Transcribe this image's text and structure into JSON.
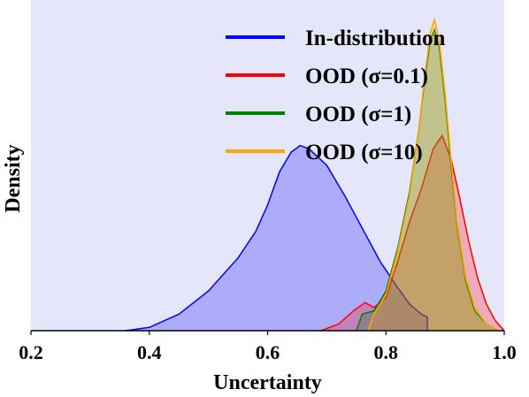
{
  "chart_data": {
    "type": "area",
    "xlabel": "Uncertainty",
    "ylabel": "Density",
    "xlim": [
      0.2,
      1.0
    ],
    "ylim": [
      0,
      1.0
    ],
    "x_ticks": [
      "0.2",
      "0.4",
      "0.6",
      "0.8",
      "1.0"
    ],
    "x_tick_values": [
      0.2,
      0.4,
      0.6,
      0.8,
      1.0
    ],
    "grid": false,
    "legend_position": "top-right",
    "background_color": "#e6e6fa",
    "series": [
      {
        "name": "In-distribution",
        "color": "#0000ff",
        "points": [
          [
            0.36,
            0.0
          ],
          [
            0.4,
            0.01
          ],
          [
            0.45,
            0.05
          ],
          [
            0.5,
            0.12
          ],
          [
            0.55,
            0.22
          ],
          [
            0.58,
            0.3
          ],
          [
            0.6,
            0.38
          ],
          [
            0.62,
            0.48
          ],
          [
            0.64,
            0.54
          ],
          [
            0.655,
            0.56
          ],
          [
            0.67,
            0.55
          ],
          [
            0.7,
            0.5
          ],
          [
            0.73,
            0.41
          ],
          [
            0.76,
            0.31
          ],
          [
            0.79,
            0.21
          ],
          [
            0.82,
            0.13
          ],
          [
            0.84,
            0.08
          ],
          [
            0.86,
            0.05
          ],
          [
            0.87,
            0.04
          ],
          [
            0.87,
            0.0
          ]
        ]
      },
      {
        "name": "OOD (σ=0.1)",
        "color": "#ff0000",
        "points": [
          [
            0.69,
            0.0
          ],
          [
            0.72,
            0.02
          ],
          [
            0.745,
            0.06
          ],
          [
            0.765,
            0.085
          ],
          [
            0.78,
            0.07
          ],
          [
            0.8,
            0.1
          ],
          [
            0.82,
            0.21
          ],
          [
            0.84,
            0.33
          ],
          [
            0.86,
            0.43
          ],
          [
            0.88,
            0.55
          ],
          [
            0.895,
            0.59
          ],
          [
            0.91,
            0.52
          ],
          [
            0.925,
            0.4
          ],
          [
            0.94,
            0.27
          ],
          [
            0.955,
            0.16
          ],
          [
            0.97,
            0.08
          ],
          [
            0.985,
            0.03
          ],
          [
            1.0,
            0.0
          ]
        ]
      },
      {
        "name": "OOD (σ=1)",
        "color": "#008000",
        "points": [
          [
            0.75,
            0.0
          ],
          [
            0.76,
            0.05
          ],
          [
            0.78,
            0.06
          ],
          [
            0.8,
            0.12
          ],
          [
            0.82,
            0.25
          ],
          [
            0.84,
            0.42
          ],
          [
            0.855,
            0.6
          ],
          [
            0.865,
            0.75
          ],
          [
            0.875,
            0.88
          ],
          [
            0.882,
            0.91
          ],
          [
            0.89,
            0.86
          ],
          [
            0.9,
            0.7
          ],
          [
            0.91,
            0.5
          ],
          [
            0.92,
            0.32
          ],
          [
            0.935,
            0.15
          ],
          [
            0.95,
            0.06
          ],
          [
            0.97,
            0.02
          ],
          [
            0.99,
            0.0
          ]
        ]
      },
      {
        "name": "OOD (σ=10)",
        "color": "#ffa500",
        "points": [
          [
            0.77,
            0.0
          ],
          [
            0.78,
            0.05
          ],
          [
            0.8,
            0.11
          ],
          [
            0.82,
            0.24
          ],
          [
            0.84,
            0.41
          ],
          [
            0.855,
            0.6
          ],
          [
            0.865,
            0.76
          ],
          [
            0.875,
            0.9
          ],
          [
            0.882,
            0.94
          ],
          [
            0.89,
            0.88
          ],
          [
            0.9,
            0.72
          ],
          [
            0.91,
            0.52
          ],
          [
            0.92,
            0.33
          ],
          [
            0.935,
            0.16
          ],
          [
            0.95,
            0.07
          ],
          [
            0.97,
            0.02
          ],
          [
            0.99,
            0.0
          ]
        ]
      }
    ]
  }
}
